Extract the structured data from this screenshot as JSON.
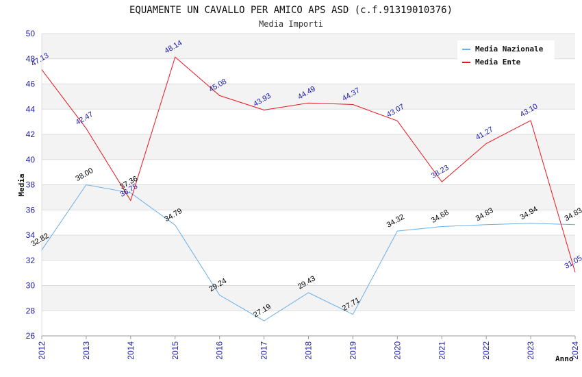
{
  "chart_data": {
    "type": "line",
    "title": "EQUAMENTE UN CAVALLO PER AMICO APS ASD (c.f.91319010376)",
    "subtitle": "Media Importi",
    "xlabel": "Anno",
    "ylabel": "Media",
    "x": [
      2012,
      2013,
      2014,
      2015,
      2016,
      2017,
      2018,
      2019,
      2020,
      2021,
      2022,
      2023,
      2024
    ],
    "ylim": [
      26,
      50
    ],
    "yticks": [
      26,
      28,
      30,
      32,
      34,
      36,
      38,
      40,
      42,
      44,
      46,
      48,
      50
    ],
    "grid": true,
    "legend_position": "top-right",
    "series": [
      {
        "name": "Media Nazionale",
        "color": "#6aaee8",
        "label_color": "#000000",
        "values": [
          32.82,
          38.0,
          37.36,
          34.79,
          29.24,
          27.19,
          29.43,
          27.71,
          34.32,
          34.68,
          34.83,
          34.94,
          34.83
        ],
        "labels": [
          "32.82",
          "38.00",
          "37.36",
          "34.79",
          "29.24",
          "27.19",
          "29.43",
          "27.71",
          "34.32",
          "34.68",
          "34.83",
          "34.94",
          "34.83"
        ]
      },
      {
        "name": "Media Ente",
        "color": "#e8141c",
        "label_color": "#1a1aa6",
        "values": [
          47.13,
          42.47,
          36.75,
          48.14,
          45.08,
          43.93,
          44.49,
          44.37,
          43.07,
          38.23,
          41.27,
          43.1,
          31.05
        ],
        "labels": [
          "47.13",
          "42.47",
          "36.75",
          "48.14",
          "45.08",
          "43.93",
          "44.49",
          "44.37",
          "43.07",
          "38.23",
          "41.27",
          "43.10",
          "31.05"
        ]
      }
    ]
  }
}
